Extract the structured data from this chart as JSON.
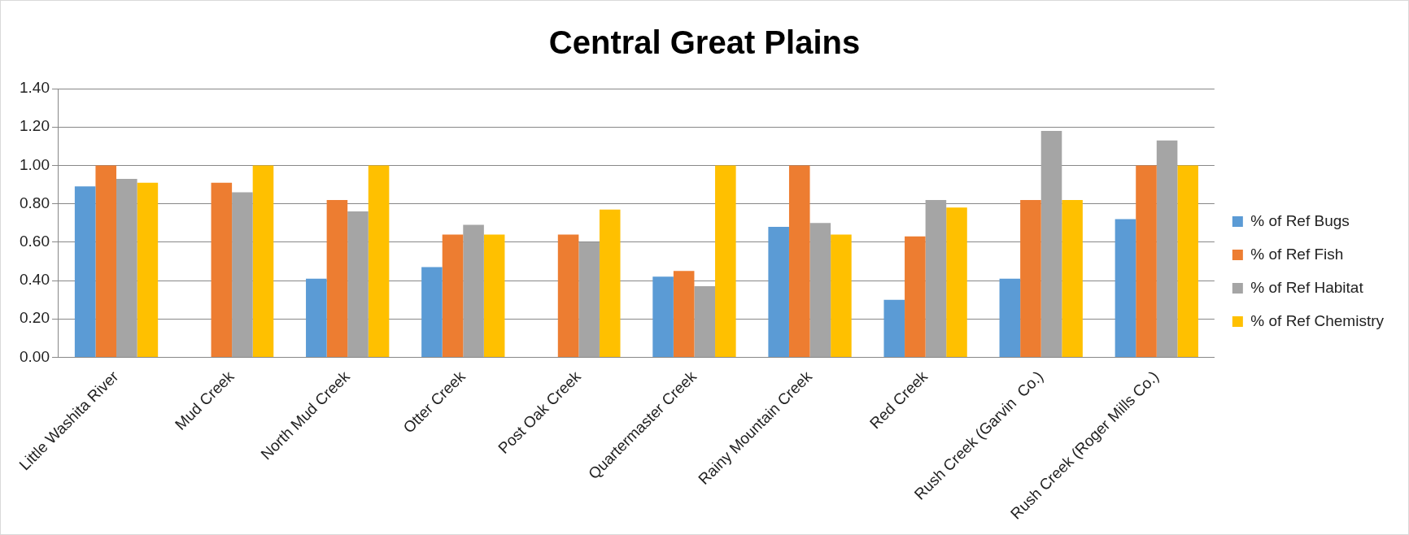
{
  "chart_data": {
    "type": "bar",
    "title": "Central Great Plains",
    "categories": [
      "Little Washita River",
      "Mud Creek",
      "North Mud Creek",
      "Otter Creek",
      "Post Oak Creek",
      "Quartermaster Creek",
      "Rainy Mountain Creek",
      "Red Creek",
      "Rush Creek (Garvin  Co.)",
      "Rush Creek (Roger Mills Co.)"
    ],
    "series": [
      {
        "name": "% of Ref Bugs",
        "color": "#5b9bd5",
        "values": [
          0.89,
          null,
          0.41,
          0.47,
          null,
          0.42,
          0.68,
          0.3,
          0.41,
          0.72
        ]
      },
      {
        "name": "% of Ref Fish",
        "color": "#ed7d31",
        "values": [
          1.0,
          0.91,
          0.82,
          0.64,
          0.64,
          0.45,
          1.0,
          0.63,
          0.82,
          1.0
        ]
      },
      {
        "name": "% of Ref Habitat",
        "color": "#a5a5a5",
        "values": [
          0.93,
          0.86,
          0.76,
          0.69,
          0.6,
          0.37,
          0.7,
          0.82,
          1.18,
          1.13
        ]
      },
      {
        "name": "% of Ref Chemistry",
        "color": "#ffc000",
        "values": [
          0.91,
          1.0,
          1.0,
          0.64,
          0.77,
          1.0,
          0.64,
          0.78,
          0.82,
          1.0
        ]
      }
    ],
    "ylim": [
      0,
      1.4
    ],
    "yticks": [
      {
        "value": 0,
        "label": "0.00"
      },
      {
        "value": 0.2,
        "label": "0.20"
      },
      {
        "value": 0.4,
        "label": "0.40"
      },
      {
        "value": 0.6,
        "label": "0.60"
      },
      {
        "value": 0.8,
        "label": "0.80"
      },
      {
        "value": 1.0,
        "label": "1.00"
      },
      {
        "value": 1.2,
        "label": "1.20"
      },
      {
        "value": 1.4,
        "label": "1.40"
      }
    ],
    "grid": "y",
    "legend": "right"
  }
}
